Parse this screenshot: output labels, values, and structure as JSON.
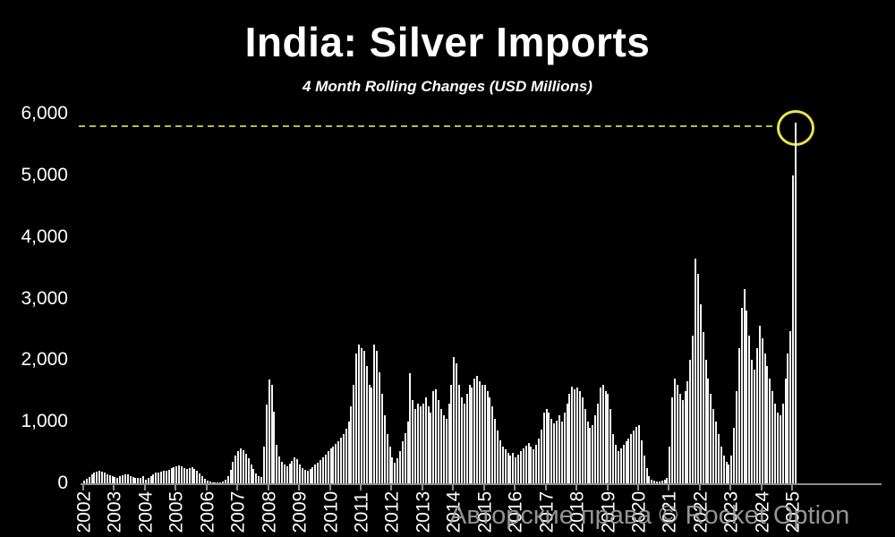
{
  "title": "India: Silver Imports",
  "subtitle": "4 Month Rolling Changes (USD Millions)",
  "watermark": "Авторские права © Rocket Option",
  "colors": {
    "background": "#000000",
    "bar": "#f5f5f5",
    "axis": "#8c8c8c",
    "text": "#ffffff",
    "reference_line": "#b9b94a",
    "highlight_circle": "#e8e34d",
    "watermark": "#a8a8a8"
  },
  "chart_data": {
    "type": "bar",
    "title": "India: Silver Imports",
    "subtitle": "4 Month Rolling Changes (USD Millions)",
    "ylabel": "USD Millions",
    "xlabel": "",
    "ylim": [
      0,
      6000
    ],
    "grid": false,
    "legend": "none",
    "y_ticks": [
      0,
      1000,
      2000,
      3000,
      4000,
      5000,
      6000
    ],
    "y_tick_labels": [
      "0",
      "1,000",
      "2,000",
      "3,000",
      "4,000",
      "5,000",
      "6,000"
    ],
    "x_tick_labels": [
      "2002",
      "2003",
      "2004",
      "2005",
      "2006",
      "2007",
      "2008",
      "2009",
      "2010",
      "2011",
      "2012",
      "2013",
      "2014",
      "2015",
      "2016",
      "2017",
      "2018",
      "2019",
      "2020",
      "2021",
      "2022",
      "2023",
      "2024",
      "2025"
    ],
    "reference_line": {
      "value": 5800,
      "style": "dashed",
      "color": "#b9b94a"
    },
    "highlight": {
      "description": "yellow circle around final record spike",
      "value": 5850
    },
    "series": [
      {
        "name": "4-month rolling change in silver imports",
        "frequency": "monthly",
        "years": [
          {
            "year": 2002,
            "values": [
              40,
              70,
              100,
              140,
              170,
              190,
              200,
              190,
              170,
              150,
              130,
              110
            ]
          },
          {
            "year": 2003,
            "values": [
              100,
              90,
              110,
              130,
              150,
              140,
              120,
              100,
              90,
              80,
              90,
              110
            ]
          },
          {
            "year": 2004,
            "values": [
              60,
              80,
              120,
              150,
              170,
              180,
              190,
              200,
              210,
              225,
              240,
              260
            ]
          },
          {
            "year": 2005,
            "values": [
              280,
              290,
              270,
              250,
              230,
              245,
              255,
              230,
              200,
              160,
              115,
              75
            ]
          },
          {
            "year": 2006,
            "values": [
              40,
              25,
              15,
              10,
              10,
              15,
              30,
              60,
              120,
              220,
              350,
              450
            ]
          },
          {
            "year": 2007,
            "values": [
              530,
              560,
              540,
              480,
              400,
              310,
              230,
              160,
              120,
              100,
              600,
              1280
            ]
          },
          {
            "year": 2008,
            "values": [
              1690,
              1600,
              1160,
              630,
              430,
              350,
              300,
              280,
              320,
              370,
              420,
              390
            ]
          },
          {
            "year": 2009,
            "values": [
              300,
              250,
              220,
              210,
              230,
              260,
              300,
              340,
              380,
              420,
              470,
              520
            ]
          },
          {
            "year": 2010,
            "values": [
              560,
              600,
              640,
              690,
              740,
              800,
              880,
              1000,
              1250,
              1600,
              2100,
              2250
            ]
          },
          {
            "year": 2011,
            "values": [
              2200,
              2150,
              1900,
              1600,
              1550,
              2250,
              2150,
              1800,
              1450,
              1100,
              800,
              600
            ]
          },
          {
            "year": 2012,
            "values": [
              420,
              330,
              400,
              520,
              680,
              820,
              1000,
              1780,
              1350,
              1200,
              1300,
              1250
            ]
          },
          {
            "year": 2013,
            "values": [
              1300,
              1400,
              1250,
              1150,
              1500,
              1520,
              1350,
              1200,
              1100,
              1050,
              1300,
              1600
            ]
          },
          {
            "year": 2014,
            "values": [
              2050,
              1950,
              1600,
              1400,
              1300,
              1450,
              1600,
              1550,
              1700,
              1750,
              1650,
              1600
            ]
          },
          {
            "year": 2015,
            "values": [
              1600,
              1500,
              1400,
              1250,
              1050,
              850,
              700,
              600,
              550,
              500,
              450,
              500
            ]
          },
          {
            "year": 2016,
            "values": [
              420,
              460,
              520,
              560,
              610,
              650,
              600,
              550,
              620,
              720,
              870,
              1150
            ]
          },
          {
            "year": 2017,
            "values": [
              1200,
              1150,
              1050,
              980,
              1020,
              1100,
              1000,
              1150,
              1300,
              1450,
              1570,
              1520
            ]
          },
          {
            "year": 2018,
            "values": [
              1550,
              1500,
              1400,
              1200,
              1000,
              900,
              950,
              1100,
              1300,
              1550,
              1600,
              1500
            ]
          },
          {
            "year": 2019,
            "values": [
              1450,
              1200,
              800,
              620,
              520,
              560,
              620,
              680,
              720,
              800,
              860,
              920
            ]
          },
          {
            "year": 2020,
            "values": [
              950,
              700,
              450,
              250,
              120,
              60,
              40,
              30,
              35,
              45,
              55,
              90
            ]
          },
          {
            "year": 2021,
            "values": [
              600,
              1400,
              1700,
              1600,
              1450,
              1350,
              1500,
              1650,
              2000,
              2400,
              3650,
              3400
            ]
          },
          {
            "year": 2022,
            "values": [
              2900,
              2450,
              2000,
              1700,
              1450,
              1200,
              1000,
              800,
              600,
              450,
              350,
              300
            ]
          },
          {
            "year": 2023,
            "values": [
              450,
              900,
              1500,
              2200,
              2850,
              3150,
              2800,
              2400,
              2000,
              1850,
              2200,
              2550
            ]
          },
          {
            "year": 2024,
            "values": [
              2350,
              2100,
              1900,
              1700,
              1500,
              1300,
              1150,
              1100,
              1300,
              1700,
              2100,
              2470
            ]
          },
          {
            "year": 2025,
            "values": [
              5000,
              5850
            ]
          }
        ]
      }
    ]
  }
}
